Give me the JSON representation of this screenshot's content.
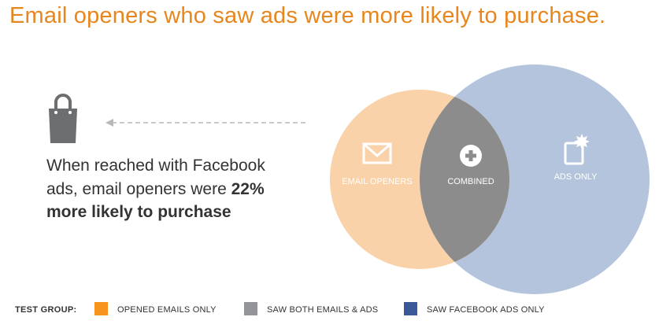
{
  "headline": "Email openers who saw ads were more likely to purchase.",
  "callout": {
    "text_plain": "When reached with Facebook ads, email openers were ",
    "text_bold": "22% more likely to purchase"
  },
  "icons": {
    "bag": "shopping-bag-icon",
    "envelope": "envelope-icon",
    "plus": "plus-circle-icon",
    "ad": "ad-badge-icon",
    "arrow": "dashed-arrow-left"
  },
  "venn": {
    "email_openers_label": "EMAIL OPENERS",
    "combined_label": "COMBINED",
    "ads_only_label": "ADS ONLY"
  },
  "legend": {
    "label": "TEST GROUP:",
    "items": [
      {
        "label": "OPENED EMAILS ONLY",
        "color": "#f7941d"
      },
      {
        "label": "SAW BOTH EMAILS & ADS",
        "color": "#939598"
      },
      {
        "label": "SAW FACEBOOK ADS ONLY",
        "color": "#3b5998"
      }
    ]
  },
  "colors": {
    "headline": "#e8861e",
    "email_circle": "#f9d2a9",
    "ads_circle": "#b4c4dc",
    "overlap": "#8c8c8c",
    "icon_gray": "#6d6e70",
    "arrow": "#b8b8b8"
  }
}
